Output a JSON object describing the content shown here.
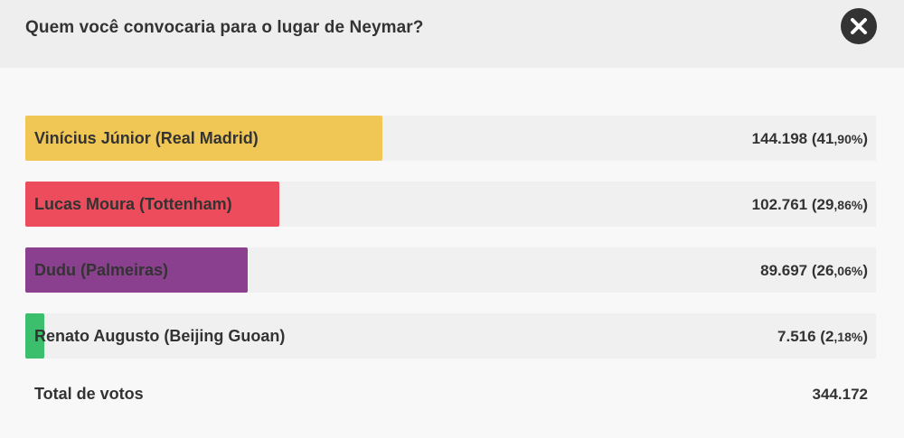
{
  "header": {
    "question": "Quem você convocaria para o lugar de Neymar?",
    "close_icon": "close-icon"
  },
  "options": [
    {
      "label": "Vinícius Júnior (Real Madrid)",
      "votes": "144.198",
      "pct_open": " (41",
      "pct_dec": ",90%",
      "pct_close": ")",
      "share": 41.9,
      "color": "#f0c654"
    },
    {
      "label": "Lucas Moura (Tottenham)",
      "votes": "102.761",
      "pct_open": " (29",
      "pct_dec": ",86%",
      "pct_close": ")",
      "share": 29.86,
      "color": "#ec4c5c"
    },
    {
      "label": "Dudu (Palmeiras)",
      "votes": "89.697",
      "pct_open": " (26",
      "pct_dec": ",06%",
      "pct_close": ")",
      "share": 26.06,
      "color": "#8a408e"
    },
    {
      "label": "Renato Augusto (Beijing Guoan)",
      "votes": "7.516",
      "pct_open": " (2",
      "pct_dec": ",18%",
      "pct_close": ")",
      "share": 2.18,
      "color": "#3cbf6c"
    }
  ],
  "total": {
    "label": "Total de votos",
    "value": "344.172"
  }
}
